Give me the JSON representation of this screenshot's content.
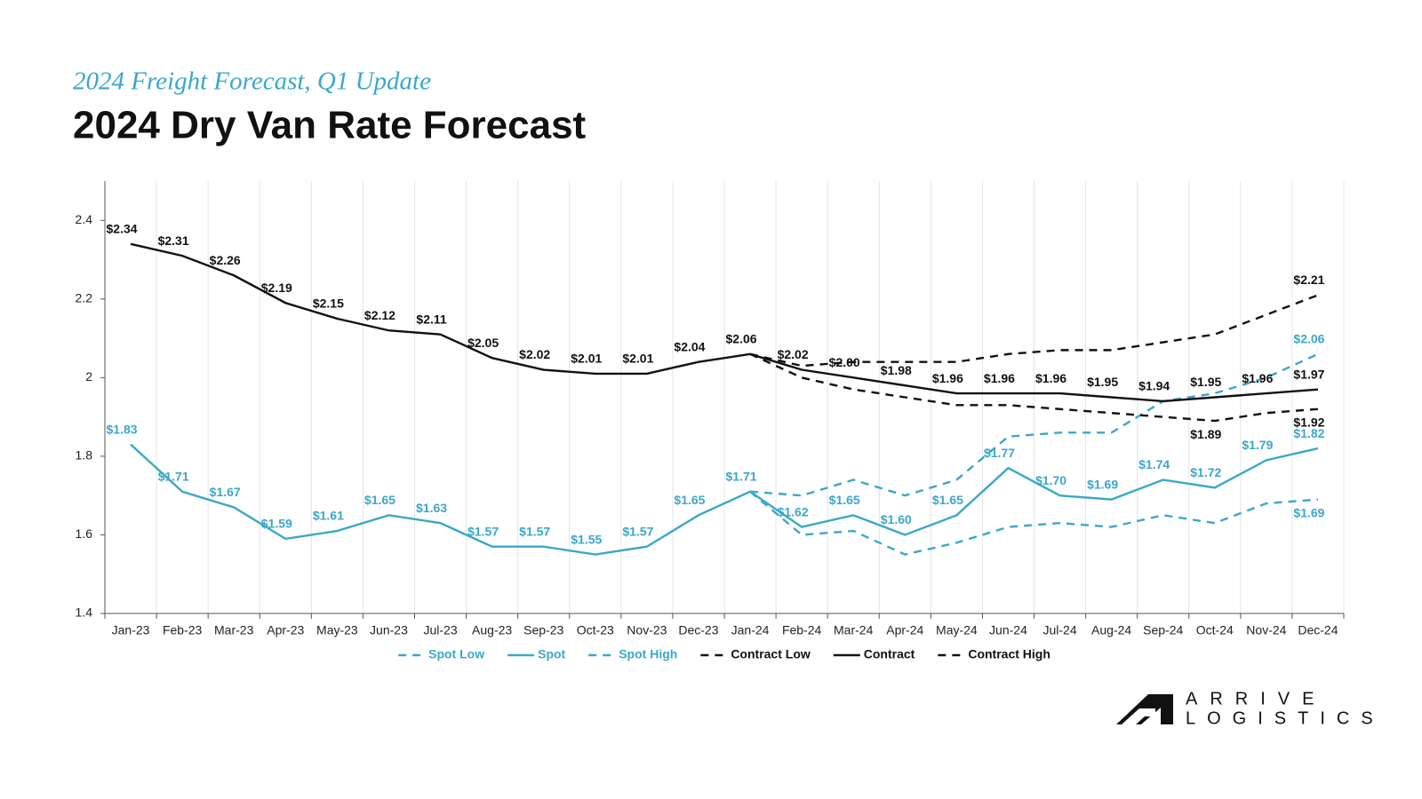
{
  "chart_data": {
    "type": "line",
    "subtitle": "2024 Freight Forecast, Q1 Update",
    "title": "2024 Dry Van Rate Forecast",
    "categories": [
      "Jan-23",
      "Feb-23",
      "Mar-23",
      "Apr-23",
      "May-23",
      "Jun-23",
      "Jul-23",
      "Aug-23",
      "Sep-23",
      "Oct-23",
      "Nov-23",
      "Dec-23",
      "Jan-24",
      "Feb-24",
      "Mar-24",
      "Apr-24",
      "May-24",
      "Jun-24",
      "Jul-24",
      "Aug-24",
      "Sep-24",
      "Oct-24",
      "Nov-24",
      "Dec-24"
    ],
    "ylim": [
      1.4,
      2.5
    ],
    "yticks": [
      1.4,
      1.6,
      1.8,
      2,
      2.2,
      2.4
    ],
    "series": [
      {
        "name": "Spot Low",
        "color": "#3ba7c9",
        "dashed": true,
        "values": [
          null,
          null,
          null,
          null,
          null,
          null,
          null,
          null,
          null,
          null,
          null,
          null,
          1.71,
          1.6,
          1.61,
          1.55,
          1.58,
          1.62,
          1.63,
          1.62,
          1.65,
          1.63,
          1.68,
          1.69
        ],
        "value_labels": [
          null,
          null,
          null,
          null,
          null,
          null,
          null,
          null,
          null,
          null,
          null,
          null,
          null,
          null,
          null,
          null,
          null,
          null,
          null,
          null,
          null,
          null,
          null,
          "$1.69"
        ]
      },
      {
        "name": "Spot",
        "color": "#3ba7c9",
        "dashed": false,
        "values": [
          1.83,
          1.71,
          1.67,
          1.59,
          1.61,
          1.65,
          1.63,
          1.57,
          1.57,
          1.55,
          1.57,
          1.65,
          1.71,
          1.62,
          1.65,
          1.6,
          1.65,
          1.77,
          1.7,
          1.69,
          1.74,
          1.72,
          1.79,
          1.82
        ],
        "value_labels": [
          "$1.83",
          "$1.71",
          "$1.67",
          "$1.59",
          "$1.61",
          "$1.65",
          "$1.63",
          "$1.57",
          "$1.57",
          "$1.55",
          "$1.57",
          "$1.65",
          "$1.71",
          "$1.62",
          "$1.65",
          "$1.60",
          "$1.65",
          "$1.77",
          "$1.70",
          "$1.69",
          "$1.74",
          "$1.72",
          "$1.79",
          "$1.82"
        ]
      },
      {
        "name": "Spot High",
        "color": "#3ba7c9",
        "dashed": true,
        "values": [
          null,
          null,
          null,
          null,
          null,
          null,
          null,
          null,
          null,
          null,
          null,
          null,
          1.71,
          1.7,
          1.74,
          1.7,
          1.74,
          1.85,
          1.86,
          1.86,
          1.94,
          1.96,
          2.0,
          2.06
        ],
        "value_labels": [
          null,
          null,
          null,
          null,
          null,
          null,
          null,
          null,
          null,
          null,
          null,
          null,
          null,
          null,
          null,
          null,
          null,
          null,
          null,
          null,
          null,
          null,
          null,
          "$2.06"
        ]
      },
      {
        "name": "Contract Low",
        "color": "#111111",
        "dashed": true,
        "values": [
          null,
          null,
          null,
          null,
          null,
          null,
          null,
          null,
          null,
          null,
          null,
          null,
          2.06,
          2.0,
          1.97,
          1.95,
          1.93,
          1.93,
          1.92,
          1.91,
          1.9,
          1.89,
          1.91,
          1.92
        ],
        "value_labels": [
          null,
          null,
          null,
          null,
          null,
          null,
          null,
          null,
          null,
          null,
          null,
          null,
          null,
          null,
          null,
          null,
          null,
          null,
          null,
          null,
          null,
          "$1.89",
          null,
          "$1.92"
        ]
      },
      {
        "name": "Contract",
        "color": "#111111",
        "dashed": false,
        "values": [
          2.34,
          2.31,
          2.26,
          2.19,
          2.15,
          2.12,
          2.11,
          2.05,
          2.02,
          2.01,
          2.01,
          2.04,
          2.06,
          2.02,
          2.0,
          1.98,
          1.96,
          1.96,
          1.96,
          1.95,
          1.94,
          1.95,
          1.96,
          1.97
        ],
        "value_labels": [
          "$2.34",
          "$2.31",
          "$2.26",
          "$2.19",
          "$2.15",
          "$2.12",
          "$2.11",
          "$2.05",
          "$2.02",
          "$2.01",
          "$2.01",
          "$2.04",
          "$2.06",
          "$2.02",
          "$2.00",
          "$1.98",
          "$1.96",
          "$1.96",
          "$1.96",
          "$1.95",
          "$1.94",
          "$1.95",
          "$1.96",
          "$1.97"
        ]
      },
      {
        "name": "Contract High",
        "color": "#111111",
        "dashed": true,
        "values": [
          null,
          null,
          null,
          null,
          null,
          null,
          null,
          null,
          null,
          null,
          null,
          null,
          2.06,
          2.03,
          2.04,
          2.04,
          2.04,
          2.06,
          2.07,
          2.07,
          2.09,
          2.11,
          2.16,
          2.21
        ],
        "value_labels": [
          null,
          null,
          null,
          null,
          null,
          null,
          null,
          null,
          null,
          null,
          null,
          null,
          null,
          null,
          null,
          null,
          null,
          null,
          null,
          null,
          null,
          null,
          null,
          "$2.21"
        ]
      }
    ],
    "legend": "bottom",
    "grid": true
  },
  "brand": {
    "line1": "ARRIVE",
    "line2": "LOGISTICS"
  }
}
